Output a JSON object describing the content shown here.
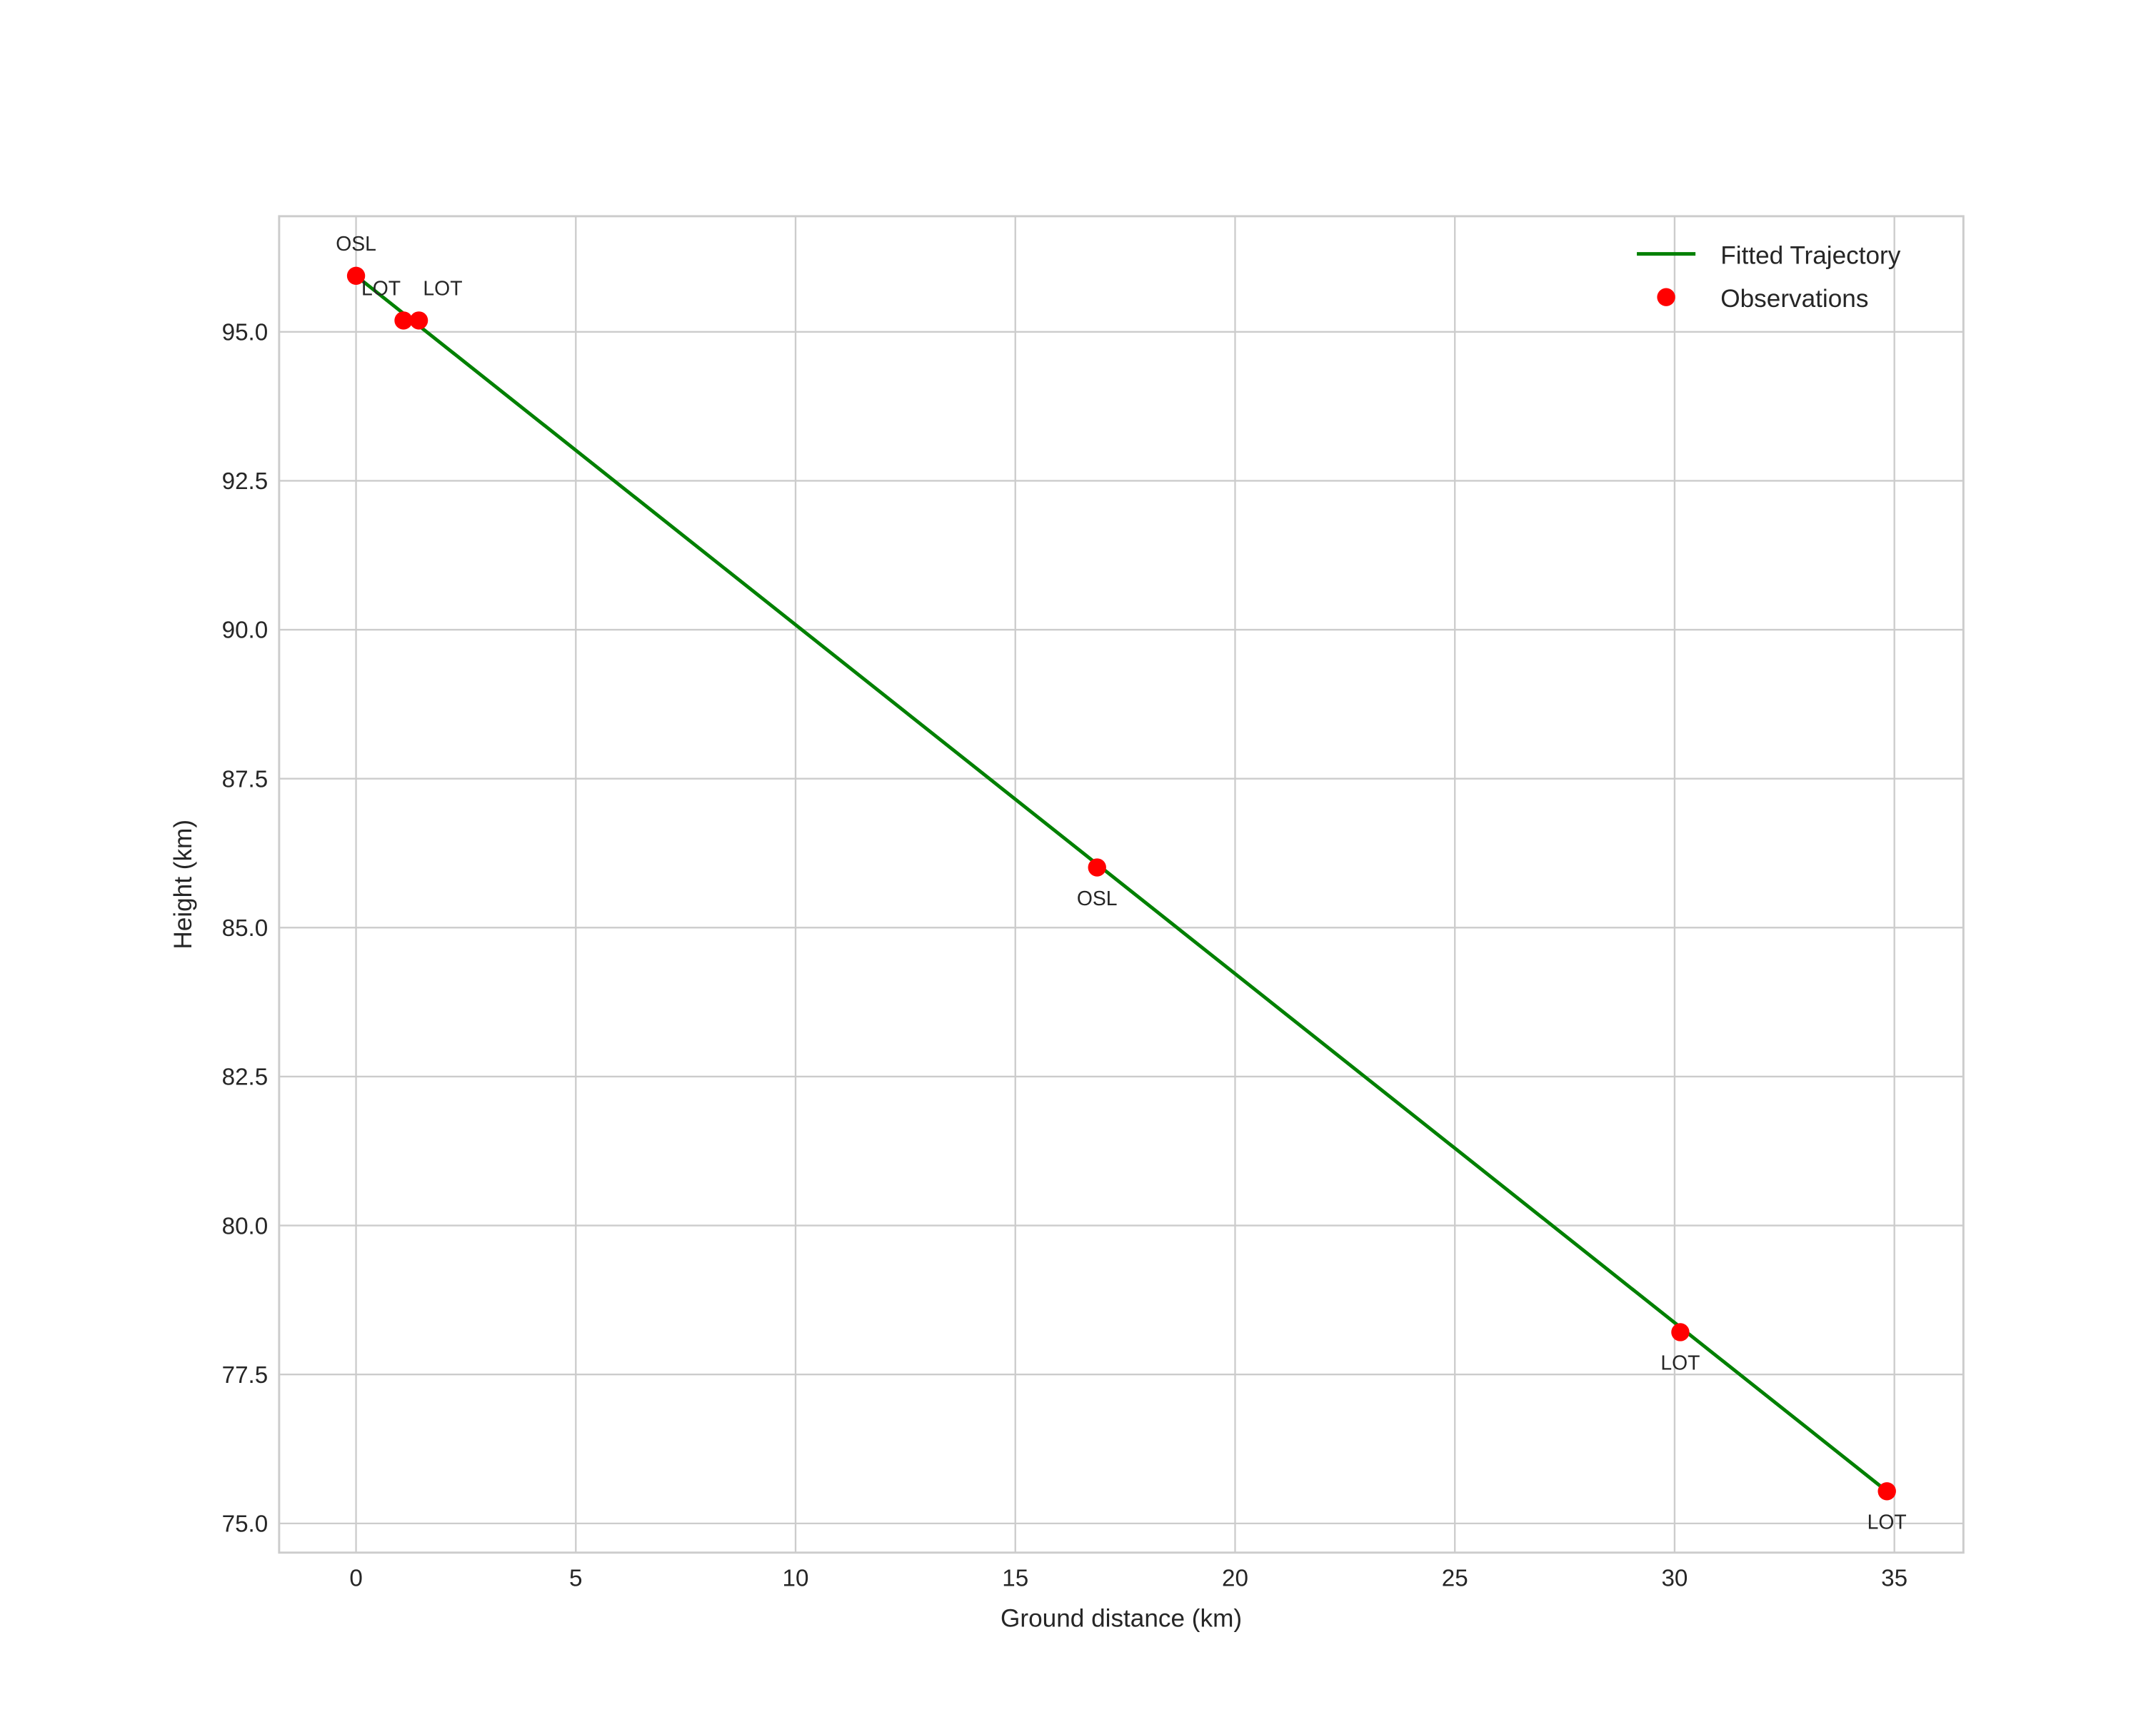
{
  "chart_data": {
    "type": "line",
    "title": "",
    "xlabel": "Ground distance (km)",
    "ylabel": "Height (km)",
    "xlim": [
      -1.75,
      36.57
    ],
    "ylim": [
      74.51,
      96.94
    ],
    "xticks": [
      0,
      5,
      10,
      15,
      20,
      25,
      30,
      35
    ],
    "yticks": [
      75.0,
      77.5,
      80.0,
      82.5,
      85.0,
      87.5,
      90.0,
      92.5,
      95.0
    ],
    "grid": true,
    "legend_position": "top-right",
    "series": [
      {
        "name": "Fitted Trajectory",
        "type": "line",
        "color": "#008000",
        "x": [
          0,
          34.83
        ],
        "y": [
          95.94,
          75.54
        ]
      },
      {
        "name": "Observations",
        "type": "scatter",
        "color": "#ff0000",
        "x": [
          0,
          1.08,
          1.43,
          16.86,
          30.13,
          34.83
        ],
        "y": [
          95.94,
          95.19,
          95.19,
          86.01,
          78.21,
          75.54
        ],
        "labels": [
          "OSL",
          "LOT",
          "LOT",
          "OSL",
          "LOT",
          "LOT"
        ],
        "label_side": [
          "above",
          "above",
          "above",
          "below",
          "below",
          "below"
        ]
      }
    ]
  }
}
